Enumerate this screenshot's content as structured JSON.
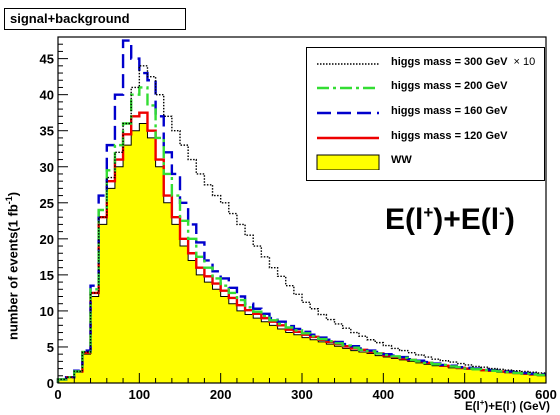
{
  "header": {
    "title": "signal+background"
  },
  "big_label": {
    "prefix": "E(l",
    "sup1": "+",
    "mid": ")+E(l",
    "sup2": "-",
    "suffix": ")"
  },
  "axes": {
    "ylabel_main": "number of events(1 fb",
    "ylabel_sup": "-1",
    "ylabel_end": ")",
    "xlabel_a": "E(l",
    "xlabel_sup1": "+",
    "xlabel_b": ")+E(l",
    "xlabel_sup2": "-",
    "xlabel_c": ") (GeV)"
  },
  "legend": [
    {
      "label": "higgs mass = 300 GeV",
      "extra": "× 10",
      "color": "#000000",
      "style": "dotted"
    },
    {
      "label": "higgs mass = 200 GeV",
      "extra": "",
      "color": "#33dd33",
      "style": "dashdot"
    },
    {
      "label": "higgs mass = 160 GeV",
      "extra": "",
      "color": "#0000cc",
      "style": "dashed"
    },
    {
      "label": "higgs mass = 120 GeV",
      "extra": "",
      "color": "#ee0000",
      "style": "solid"
    },
    {
      "label": "WW",
      "extra": "",
      "color": "#ffff00",
      "style": "fill"
    }
  ],
  "chart_data": {
    "type": "area",
    "x": [
      0,
      10,
      20,
      30,
      40,
      50,
      60,
      70,
      80,
      90,
      100,
      110,
      120,
      130,
      140,
      150,
      160,
      170,
      180,
      190,
      200,
      210,
      220,
      230,
      240,
      250,
      260,
      270,
      280,
      290,
      300,
      310,
      320,
      330,
      340,
      350,
      360,
      370,
      380,
      390,
      400,
      410,
      420,
      430,
      440,
      450,
      460,
      470,
      480,
      490,
      500,
      510,
      520,
      530,
      540,
      550,
      560,
      570,
      580,
      590
    ],
    "bin_width": 10,
    "xlim": [
      0,
      600
    ],
    "ylim": [
      0,
      48
    ],
    "xticks": [
      0,
      100,
      200,
      300,
      400,
      500,
      600
    ],
    "yticks": [
      0,
      5,
      10,
      15,
      20,
      25,
      30,
      35,
      40,
      45
    ],
    "grid": false,
    "legend_position": "top-right",
    "series": [
      {
        "name": "WW",
        "color": "#ffff00",
        "values": [
          0.5,
          0.8,
          1.5,
          4,
          12,
          22,
          27,
          30,
          33,
          35,
          36,
          34,
          30,
          25,
          22,
          19,
          17,
          15,
          14,
          13,
          12,
          11,
          10,
          9.5,
          9,
          8.5,
          8,
          7.5,
          7,
          6.7,
          6.3,
          6,
          5.7,
          5.4,
          5.1,
          4.8,
          4.5,
          4.3,
          4.1,
          3.8,
          3.6,
          3.4,
          3.2,
          3,
          2.8,
          2.6,
          2.4,
          2.3,
          2.1,
          2,
          1.9,
          1.8,
          1.7,
          1.6,
          1.5,
          1.4,
          1.3,
          1.2,
          1.1,
          1.0
        ]
      },
      {
        "name": "higgs mass = 120 GeV",
        "color": "#ee0000",
        "values": [
          0.5,
          0.8,
          1.6,
          4.2,
          12.5,
          23,
          28,
          31,
          34.5,
          37,
          37.5,
          35,
          31,
          26,
          23,
          20,
          18,
          16,
          14.8,
          13.8,
          12.8,
          11.8,
          10.8,
          10.1,
          9.6,
          9,
          8.5,
          8,
          7.4,
          7.1,
          6.7,
          6.4,
          6,
          5.7,
          5.4,
          5.1,
          4.8,
          4.6,
          4.3,
          4.1,
          3.8,
          3.6,
          3.4,
          3.2,
          3,
          2.8,
          2.6,
          2.4,
          2.3,
          2.1,
          2,
          1.9,
          1.8,
          1.7,
          1.6,
          1.5,
          1.4,
          1.3,
          1.2,
          1.1
        ]
      },
      {
        "name": "higgs mass = 160 GeV",
        "color": "#0000cc",
        "values": [
          0.5,
          0.8,
          1.7,
          4.5,
          13.5,
          26,
          33,
          40,
          47.5,
          45,
          43,
          42,
          37,
          32,
          29,
          25,
          22,
          19.5,
          17,
          15.5,
          14.5,
          13.2,
          12,
          11,
          10.3,
          9.6,
          9,
          8.5,
          7.9,
          7.5,
          7.1,
          6.7,
          6.3,
          6,
          5.7,
          5.4,
          5.1,
          4.8,
          4.5,
          4.3,
          4,
          3.8,
          3.6,
          3.3,
          3.1,
          2.9,
          2.7,
          2.5,
          2.4,
          2.2,
          2.1,
          2,
          1.9,
          1.8,
          1.7,
          1.6,
          1.5,
          1.4,
          1.3,
          1.2
        ]
      },
      {
        "name": "higgs mass = 200 GeV",
        "color": "#33dd33",
        "values": [
          0.5,
          0.8,
          1.6,
          4.3,
          13,
          24,
          29.5,
          33,
          36,
          40,
          41,
          38.5,
          34,
          29,
          26,
          22.5,
          20,
          17.5,
          16,
          14.5,
          13.5,
          12.5,
          11.5,
          10.5,
          9.9,
          9.3,
          8.7,
          8.2,
          7.7,
          7.3,
          6.9,
          6.5,
          6.1,
          5.8,
          5.5,
          5.2,
          4.9,
          4.6,
          4.4,
          4.1,
          3.9,
          3.7,
          3.5,
          3.2,
          3,
          2.8,
          2.6,
          2.5,
          2.3,
          2.2,
          2,
          1.9,
          1.8,
          1.7,
          1.6,
          1.5,
          1.4,
          1.3,
          1.2,
          1.1
        ]
      },
      {
        "name": "higgs mass = 300 GeV",
        "color": "#000000",
        "values": [
          0.5,
          0.8,
          1.6,
          4.3,
          12.5,
          23,
          28.5,
          32,
          36,
          41,
          44,
          42.5,
          40,
          37,
          35,
          33,
          31,
          29,
          27.5,
          26,
          25,
          23.5,
          22,
          20.5,
          19,
          17.5,
          16,
          14.8,
          13.5,
          12.3,
          11.2,
          10.3,
          9.5,
          8.8,
          8.2,
          7.6,
          7,
          6.5,
          6,
          5.6,
          5.2,
          4.8,
          4.5,
          4.2,
          3.9,
          3.6,
          3.3,
          3.1,
          2.9,
          2.7,
          2.5,
          2.3,
          2.2,
          2,
          1.9,
          1.8,
          1.7,
          1.6,
          1.5,
          1.4
        ]
      }
    ]
  }
}
